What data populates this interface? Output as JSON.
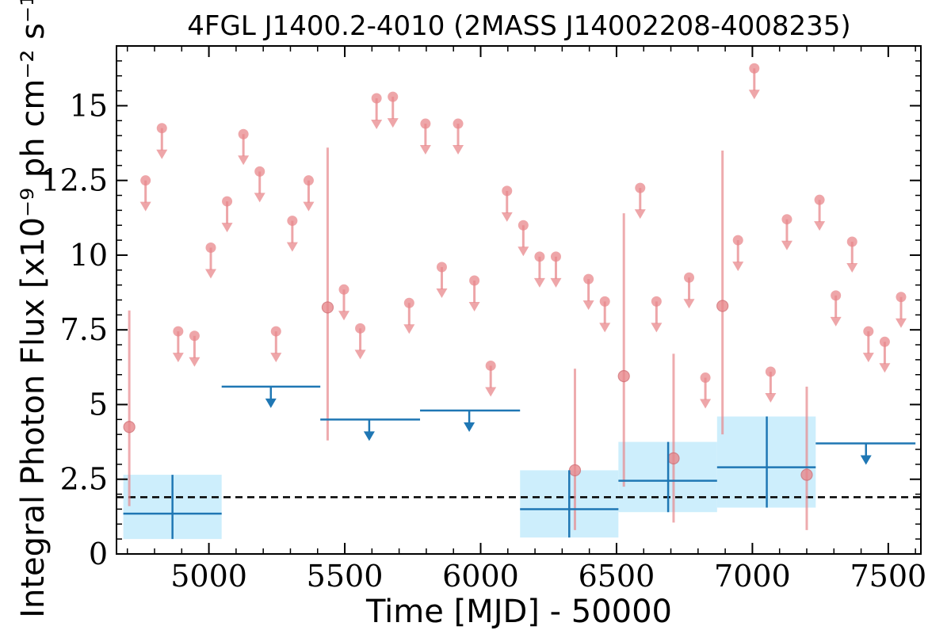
{
  "chart_data": {
    "type": "scatter",
    "title": "4FGL J1400.2-4010 (2MASS J14002208-4008235)",
    "xlabel": "Time [MJD] - 50000",
    "ylabel": "Integral Photon Flux [x10⁻⁹ ph cm⁻² s⁻¹]",
    "xlim": [
      4660,
      7620
    ],
    "ylim": [
      0,
      17
    ],
    "xticks": [
      5000,
      5500,
      6000,
      6500,
      7000,
      7500
    ],
    "xtick_labels": [
      "5000",
      "5500",
      "6000",
      "6500",
      "7000",
      "7500"
    ],
    "yticks": [
      0,
      2.5,
      5,
      7.5,
      10,
      12.5,
      15
    ],
    "ytick_labels": [
      "0",
      "2.5",
      "5",
      "7.5",
      "10",
      "12.5",
      "15"
    ],
    "grid": false,
    "colors": {
      "short_bins": "#e8888c",
      "long_bins": "#1f77b4",
      "long_bins_band": "#cdeefc",
      "reference_line": "#000000"
    },
    "reference_line": {
      "y": 1.9,
      "style": "dashed"
    },
    "series": [
      {
        "marker": "short-bin detections",
        "points": [
          {
            "x": 4707,
            "y": 4.25,
            "ylow": 1.6,
            "yhigh": 8.15
          },
          {
            "x": 5437,
            "y": 8.25,
            "ylow": 3.8,
            "yhigh": 13.6
          },
          {
            "x": 6347,
            "y": 2.8,
            "ylow": 0.8,
            "yhigh": 6.2
          },
          {
            "x": 6527,
            "y": 5.95,
            "ylow": 2.25,
            "yhigh": 11.4
          },
          {
            "x": 6710,
            "y": 3.2,
            "ylow": 1.05,
            "yhigh": 6.7
          },
          {
            "x": 6890,
            "y": 8.3,
            "ylow": 4.0,
            "yhigh": 13.5
          },
          {
            "x": 7200,
            "y": 2.65,
            "ylow": 0.8,
            "yhigh": 5.6
          }
        ]
      },
      {
        "marker": "short-bin upper limits",
        "x": [
          4767,
          4827,
          4887,
          4947,
          5007,
          5067,
          5127,
          5187,
          5247,
          5307,
          5367,
          5497,
          5557,
          5617,
          5677,
          5737,
          5797,
          5857,
          5917,
          5977,
          6037,
          6097,
          6157,
          6217,
          6277,
          6397,
          6457,
          6587,
          6647,
          6767,
          6827,
          6947,
          7007,
          7067,
          7127,
          7247,
          7307,
          7367,
          7427,
          7487,
          7547
        ],
        "y": [
          12.5,
          14.25,
          7.45,
          7.3,
          10.25,
          11.8,
          14.05,
          12.8,
          7.45,
          11.15,
          12.5,
          8.85,
          7.55,
          15.25,
          15.3,
          8.4,
          14.4,
          9.6,
          14.4,
          9.15,
          6.3,
          12.15,
          11.0,
          9.95,
          9.95,
          9.2,
          8.45,
          12.25,
          8.45,
          9.25,
          5.9,
          10.5,
          16.25,
          6.1,
          11.2,
          11.85,
          8.65,
          10.45,
          7.45,
          7.1,
          8.6
        ]
      },
      {
        "marker": "long-bin detections",
        "points": [
          {
            "x": 4866,
            "xlow": 4685,
            "xhigh": 5047,
            "y": 1.35,
            "ylow": 0.5,
            "yhigh": 2.65
          },
          {
            "x": 6326,
            "xlow": 6145,
            "xhigh": 6507,
            "y": 1.5,
            "ylow": 0.55,
            "yhigh": 2.8
          },
          {
            "x": 6690,
            "xlow": 6507,
            "xhigh": 6870,
            "y": 2.45,
            "ylow": 1.4,
            "yhigh": 3.75
          },
          {
            "x": 7053,
            "xlow": 6870,
            "xhigh": 7233,
            "y": 2.9,
            "ylow": 1.55,
            "yhigh": 4.6
          }
        ]
      },
      {
        "marker": "long-bin upper limits",
        "points": [
          {
            "x": 5228,
            "xlow": 5047,
            "xhigh": 5410,
            "y": 5.6
          },
          {
            "x": 5590,
            "xlow": 5410,
            "xhigh": 5777,
            "y": 4.5
          },
          {
            "x": 5958,
            "xlow": 5777,
            "xhigh": 6145,
            "y": 4.8
          },
          {
            "x": 7418,
            "xlow": 7233,
            "xhigh": 7600,
            "y": 3.7
          }
        ]
      }
    ]
  }
}
